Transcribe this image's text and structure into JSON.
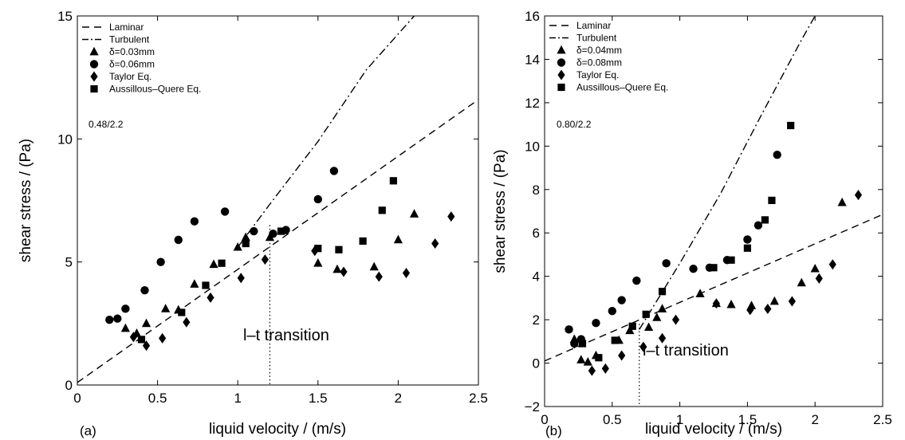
{
  "chart_data": [
    {
      "type": "scatter",
      "panel_label": "(a)",
      "xlabel": "liquid velocity / (m/s)",
      "ylabel": "shear stress / (Pa)",
      "xlim": [
        0,
        2.5
      ],
      "ylim": [
        0,
        15
      ],
      "xticks": [
        0,
        0.5,
        1,
        1.5,
        2,
        2.5
      ],
      "yticks": [
        0,
        5,
        10,
        15
      ],
      "legend_position": "top-left",
      "annotation": "0.48/2.2",
      "transition": {
        "label": "l–t transition",
        "x": 1.2,
        "y_top": 6.5
      },
      "lines": [
        {
          "name": "Laminar",
          "style": "dashed",
          "points": [
            [
              0.0,
              0.1
            ],
            [
              2.5,
              11.6
            ]
          ]
        },
        {
          "name": "Turbulent",
          "style": "dashdot",
          "points": [
            [
              1.0,
              5.6
            ],
            [
              1.2,
              7.35
            ],
            [
              1.5,
              9.9
            ],
            [
              1.8,
              12.8
            ],
            [
              2.1,
              15.0
            ]
          ]
        }
      ],
      "series": [
        {
          "name": "δ=0.03mm",
          "marker": "triangle",
          "points": [
            [
              0.3,
              2.3
            ],
            [
              0.37,
              2.1
            ],
            [
              0.43,
              2.5
            ],
            [
              0.55,
              3.1
            ],
            [
              0.63,
              3.05
            ],
            [
              0.73,
              4.1
            ],
            [
              0.85,
              4.9
            ],
            [
              1.0,
              5.6
            ],
            [
              1.05,
              6.0
            ],
            [
              1.2,
              6.0
            ],
            [
              1.5,
              4.95
            ],
            [
              1.62,
              4.7
            ],
            [
              1.85,
              4.8
            ],
            [
              2.0,
              5.9
            ],
            [
              2.1,
              6.95
            ]
          ]
        },
        {
          "name": "δ=0.06mm",
          "marker": "circle",
          "points": [
            [
              0.2,
              2.65
            ],
            [
              0.25,
              2.7
            ],
            [
              0.3,
              3.1
            ],
            [
              0.42,
              3.85
            ],
            [
              0.52,
              5.0
            ],
            [
              0.63,
              5.9
            ],
            [
              0.73,
              6.65
            ],
            [
              0.92,
              7.05
            ],
            [
              1.1,
              6.25
            ],
            [
              1.3,
              6.3
            ],
            [
              1.5,
              7.55
            ],
            [
              1.6,
              8.7
            ],
            [
              1.22,
              6.15
            ]
          ]
        },
        {
          "name": "Taylor Eq.",
          "marker": "diamond",
          "points": [
            [
              0.35,
              1.95
            ],
            [
              0.43,
              1.6
            ],
            [
              0.53,
              1.9
            ],
            [
              0.68,
              2.55
            ],
            [
              0.83,
              3.55
            ],
            [
              1.02,
              4.35
            ],
            [
              1.17,
              5.1
            ],
            [
              1.48,
              5.45
            ],
            [
              1.66,
              4.6
            ],
            [
              1.88,
              4.4
            ],
            [
              2.05,
              4.55
            ],
            [
              2.23,
              5.75
            ],
            [
              2.33,
              6.85
            ]
          ]
        },
        {
          "name": "Aussillous–Quere Eq.",
          "marker": "square",
          "points": [
            [
              0.4,
              1.85
            ],
            [
              0.65,
              2.95
            ],
            [
              0.8,
              4.05
            ],
            [
              0.9,
              4.95
            ],
            [
              1.05,
              5.75
            ],
            [
              1.27,
              6.25
            ],
            [
              1.5,
              5.55
            ],
            [
              1.63,
              5.5
            ],
            [
              1.78,
              5.85
            ],
            [
              1.9,
              7.1
            ],
            [
              1.97,
              8.3
            ]
          ]
        }
      ]
    },
    {
      "type": "scatter",
      "panel_label": "(b)",
      "xlabel": "liquid velocity / (m/s)",
      "ylabel": "shear stress / (Pa)",
      "xlim": [
        0,
        2.5
      ],
      "ylim": [
        -2,
        16
      ],
      "xticks": [
        0,
        0.5,
        1,
        1.5,
        2,
        2.5
      ],
      "yticks": [
        -2,
        0,
        2,
        4,
        6,
        8,
        10,
        12,
        14,
        16
      ],
      "legend_position": "top-left",
      "annotation": "0.80/2.2",
      "transition": {
        "label": "l–t transition",
        "x": 0.7,
        "y_top": 1.8
      },
      "lines": [
        {
          "name": "Laminar",
          "style": "dashed",
          "points": [
            [
              0.0,
              0.1
            ],
            [
              2.5,
              6.85
            ]
          ]
        },
        {
          "name": "Turbulent",
          "style": "dashdot",
          "points": [
            [
              0.7,
              1.55
            ],
            [
              1.0,
              4.6
            ],
            [
              1.3,
              7.8
            ],
            [
              1.6,
              11.4
            ],
            [
              1.9,
              14.9
            ],
            [
              2.0,
              16.0
            ]
          ]
        }
      ],
      "series": [
        {
          "name": "δ=0.04mm",
          "marker": "triangle",
          "points": [
            [
              0.22,
              1.1
            ],
            [
              0.27,
              0.15
            ],
            [
              0.32,
              0.05
            ],
            [
              0.38,
              0.35
            ],
            [
              0.55,
              1.05
            ],
            [
              0.63,
              1.5
            ],
            [
              0.77,
              1.65
            ],
            [
              0.83,
              2.1
            ],
            [
              0.87,
              2.5
            ],
            [
              1.15,
              3.2
            ],
            [
              1.27,
              2.75
            ],
            [
              1.38,
              2.7
            ],
            [
              1.53,
              2.65
            ],
            [
              1.7,
              2.85
            ],
            [
              1.9,
              3.7
            ],
            [
              2.0,
              4.35
            ],
            [
              2.2,
              7.4
            ]
          ]
        },
        {
          "name": "δ=0.08mm",
          "marker": "circle",
          "points": [
            [
              0.18,
              1.55
            ],
            [
              0.22,
              0.9
            ],
            [
              0.27,
              1.1
            ],
            [
              0.38,
              1.85
            ],
            [
              0.5,
              2.4
            ],
            [
              0.57,
              2.9
            ],
            [
              0.68,
              3.8
            ],
            [
              0.9,
              4.6
            ],
            [
              1.1,
              4.35
            ],
            [
              1.22,
              4.4
            ],
            [
              1.35,
              4.75
            ],
            [
              1.5,
              5.7
            ],
            [
              1.58,
              6.35
            ],
            [
              1.72,
              9.6
            ]
          ]
        },
        {
          "name": "Taylor Eq.",
          "marker": "diamond",
          "points": [
            [
              0.22,
              0.9
            ],
            [
              0.35,
              -0.35
            ],
            [
              0.45,
              -0.25
            ],
            [
              0.57,
              0.35
            ],
            [
              0.73,
              0.75
            ],
            [
              0.87,
              1.15
            ],
            [
              0.97,
              2.0
            ],
            [
              1.27,
              2.75
            ],
            [
              1.52,
              2.45
            ],
            [
              1.65,
              2.5
            ],
            [
              1.83,
              2.85
            ],
            [
              2.03,
              3.9
            ],
            [
              2.13,
              4.55
            ],
            [
              2.32,
              7.75
            ]
          ]
        },
        {
          "name": "Aussillous–Quere Eq.",
          "marker": "square",
          "points": [
            [
              0.28,
              0.9
            ],
            [
              0.4,
              0.25
            ],
            [
              0.52,
              1.05
            ],
            [
              0.65,
              1.7
            ],
            [
              0.75,
              2.25
            ],
            [
              0.87,
              3.3
            ],
            [
              1.25,
              4.4
            ],
            [
              1.38,
              4.75
            ],
            [
              1.5,
              5.3
            ],
            [
              1.63,
              6.6
            ],
            [
              1.68,
              7.5
            ],
            [
              1.82,
              10.95
            ]
          ]
        }
      ]
    }
  ]
}
